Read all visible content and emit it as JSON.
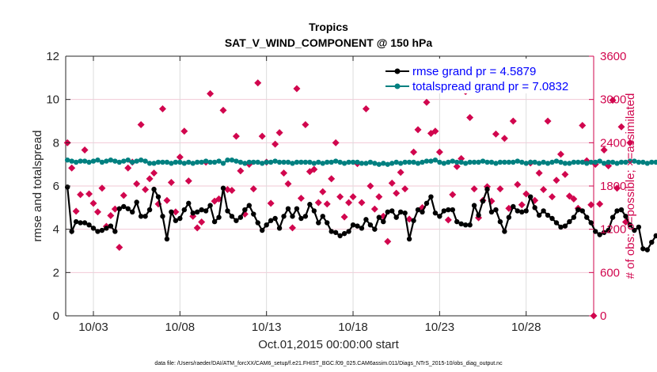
{
  "chart_data": {
    "type": "line",
    "title": "Tropics",
    "subtitle": "SAT_V_WIND_COMPONENT @ 150 hPa",
    "xlabel": "Oct.01,2015 00:00:00 start",
    "ylabel": "rmse and totalspread",
    "y2label": "# of obs: o=possible; ×=assimilated",
    "footnote": "data file: /Users/raeder/DAI/ATM_forcXX/CAM6_setup/f.e21.FHIST_BGC.f09_025.CAM6assim.011/Diags_NTrS_2015-10/obs_diag_output.nc",
    "xlim_days": [
      0.4,
      30.9
    ],
    "ylim": [
      0,
      12
    ],
    "y2lim": [
      0,
      3600
    ],
    "x_ticks": [
      {
        "day": 2,
        "label": "10/03"
      },
      {
        "day": 7,
        "label": "10/08"
      },
      {
        "day": 12,
        "label": "10/13"
      },
      {
        "day": 17,
        "label": "10/18"
      },
      {
        "day": 22,
        "label": "10/23"
      },
      {
        "day": 27,
        "label": "10/28"
      }
    ],
    "y_ticks": [
      "0",
      "2",
      "4",
      "6",
      "8",
      "10",
      "12"
    ],
    "y2_ticks": [
      "0",
      "600",
      "1200",
      "1800",
      "2400",
      "3000",
      "3600"
    ],
    "grid": true,
    "legend_position": "top-right",
    "x_start_day": 0.5,
    "x_step_days": 0.25,
    "series": [
      {
        "name": "rmse grand pr = 4.5879",
        "color": "#000000",
        "axis": "left",
        "values": [
          5.95,
          3.9,
          4.35,
          4.3,
          4.3,
          4.2,
          4.05,
          3.9,
          3.95,
          4.05,
          4.15,
          3.9,
          4.95,
          5.05,
          4.95,
          4.8,
          5.25,
          4.6,
          4.6,
          4.9,
          5.85,
          5.5,
          4.6,
          3.55,
          4.8,
          4.4,
          4.5,
          4.9,
          5.2,
          4.75,
          4.8,
          4.9,
          4.85,
          5.1,
          4.35,
          4.55,
          5.9,
          4.85,
          4.6,
          4.4,
          4.55,
          4.9,
          5.1,
          4.7,
          4.3,
          3.95,
          4.2,
          4.4,
          4.5,
          4.05,
          4.6,
          4.95,
          4.6,
          4.95,
          4.5,
          4.6,
          5.15,
          4.85,
          4.3,
          4.6,
          4.3,
          3.9,
          3.85,
          3.7,
          3.8,
          3.9,
          4.2,
          4.15,
          4.05,
          4.45,
          4.2,
          4.0,
          4.55,
          4.35,
          4.8,
          4.85,
          4.55,
          4.8,
          4.75,
          3.55,
          4.4,
          4.9,
          4.8,
          5.2,
          5.5,
          4.75,
          4.6,
          4.85,
          4.9,
          4.9,
          4.35,
          4.25,
          4.2,
          4.2,
          5.1,
          4.65,
          5.3,
          5.85,
          4.8,
          4.9,
          4.35,
          3.9,
          4.55,
          5.05,
          4.85,
          4.8,
          4.85,
          5.5,
          5.0,
          4.65,
          4.85,
          4.65,
          4.5,
          4.3,
          4.1,
          4.15,
          4.35,
          4.55,
          4.9,
          4.85,
          4.55,
          4.3,
          3.9,
          3.75,
          3.85,
          3.95,
          4.55,
          4.85,
          4.9,
          4.6,
          4.2,
          3.95,
          4.1,
          3.1,
          3.05,
          3.4,
          3.7,
          3.9,
          4.8
        ]
      },
      {
        "name": "totalspread grand pr = 7.0832",
        "color": "#008080",
        "axis": "left",
        "values": [
          7.2,
          7.15,
          7.1,
          7.15,
          7.15,
          7.1,
          7.15,
          7.2,
          7.1,
          7.15,
          7.2,
          7.15,
          7.1,
          7.15,
          7.2,
          7.1,
          7.15,
          7.2,
          7.15,
          7.05,
          7.05,
          7.1,
          7.1,
          7.1,
          7.05,
          7.1,
          7.1,
          7.05,
          7.1,
          7.05,
          7.1,
          7.1,
          7.15,
          7.1,
          7.1,
          7.15,
          7.05,
          7.2,
          7.2,
          7.15,
          7.1,
          7.05,
          7.1,
          7.1,
          7.1,
          7.05,
          7.1,
          7.1,
          7.15,
          7.1,
          7.1,
          7.1,
          7.05,
          7.1,
          7.1,
          7.1,
          7.1,
          7.05,
          7.1,
          7.05,
          7.1,
          7.1,
          7.15,
          7.1,
          7.05,
          7.1,
          7.1,
          7.1,
          7.05,
          7.05,
          7.1,
          7.05,
          7.0,
          7.05,
          7.0,
          7.05,
          7.1,
          7.05,
          7.1,
          7.1,
          7.1,
          7.05,
          7.1,
          7.15,
          7.15,
          7.2,
          7.1,
          7.05,
          7.1,
          7.15,
          7.1,
          7.1,
          7.05,
          7.1,
          7.1,
          7.1,
          7.15,
          7.1,
          7.1,
          7.05,
          7.1,
          7.1,
          7.1,
          7.1,
          7.15,
          7.1,
          7.05,
          7.1,
          7.1,
          7.05,
          7.1,
          7.05,
          7.1,
          7.15,
          7.1,
          7.05,
          7.05,
          7.1,
          7.1,
          7.1,
          7.05,
          7.1,
          7.1,
          7.15,
          7.05,
          7.1,
          7.1,
          7.05,
          7.1,
          7.1,
          7.15,
          7.15,
          7.1,
          7.1,
          7.05,
          7.1,
          7.1,
          7.05
        ]
      },
      {
        "name": "obs assimilated",
        "color": "#d1064e",
        "axis": "right",
        "marker": "plus-diamond",
        "values": [
          2400,
          2050,
          1450,
          1680,
          2300,
          1690,
          1560,
          1440,
          1770,
          1240,
          1390,
          1480,
          950,
          1670,
          2050,
          2130,
          1830,
          2650,
          1750,
          1900,
          1980,
          1550,
          2870,
          1600,
          1850,
          1440,
          2200,
          2560,
          1870,
          1380,
          1220,
          1300,
          2130,
          3080,
          1590,
          1620,
          2850,
          1750,
          1740,
          2490,
          2010,
          1410,
          2100,
          1760,
          3230,
          2490,
          2130,
          1560,
          2380,
          2540,
          1980,
          1830,
          1220,
          3150,
          1630,
          2650,
          2000,
          2030,
          1570,
          1720,
          1550,
          1900,
          2400,
          1650,
          1370,
          1570,
          1650,
          2110,
          1570,
          2870,
          1800,
          1480,
          1650,
          1380,
          1030,
          1840,
          1700,
          1990,
          1760,
          1340,
          2270,
          2580,
          1500,
          2960,
          2530,
          2560,
          2270,
          3310,
          1330,
          1680,
          2070,
          2180,
          3110,
          2750,
          1760,
          1360,
          1600,
          1790,
          1590,
          2520,
          1760,
          2460,
          1490,
          2700,
          1820,
          1540,
          1690,
          2120,
          1600,
          1980,
          1750,
          2700,
          1650,
          1880,
          2240,
          1960,
          1660,
          1620,
          1490,
          2640,
          2150,
          1540,
          2100,
          1550,
          2300,
          2080,
          2990,
          1770,
          2620,
          1300,
          2400
        ]
      }
    ]
  },
  "ui": {
    "title": "Tropics",
    "subtitle": "SAT_V_WIND_COMPONENT @ 150 hPa",
    "legend": [
      {
        "label": "rmse grand pr = 4.5879",
        "color": "#000000"
      },
      {
        "label": "totalspread grand pr = 7.0832",
        "color": "#008080"
      }
    ]
  }
}
